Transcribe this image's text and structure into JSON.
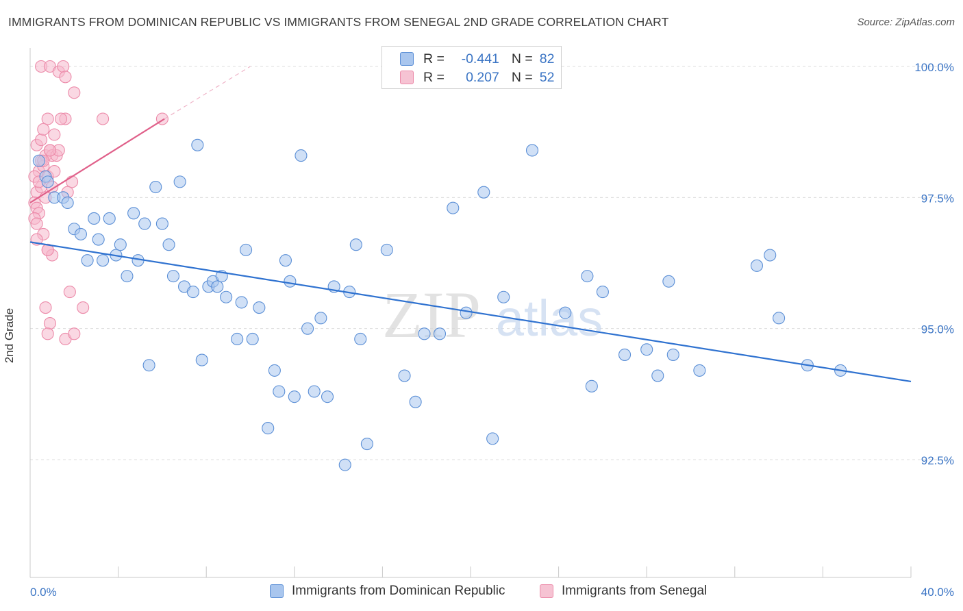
{
  "title": "IMMIGRANTS FROM DOMINICAN REPUBLIC VS IMMIGRANTS FROM SENEGAL 2ND GRADE CORRELATION CHART",
  "source": "Source: ZipAtlas.com",
  "watermark": {
    "zip": "ZIP",
    "atlas": "atlas"
  },
  "colors": {
    "blue_fill": "#a9c6ee",
    "blue_stroke": "#5b8fd6",
    "blue_line": "#2f72d0",
    "pink_fill": "#f6b8cc",
    "pink_stroke": "#ec8aa9",
    "pink_line": "#e0608a",
    "tick_text": "#3a74c4",
    "grid": "#dcdcdc"
  },
  "stats": [
    {
      "r_label": "R =",
      "r_value": "-0.441",
      "n_label": "N =",
      "n_value": "82"
    },
    {
      "r_label": "R =",
      "r_value": "0.207",
      "n_label": "N =",
      "n_value": "52"
    }
  ],
  "chart_data": {
    "type": "scatter",
    "title": "IMMIGRANTS FROM DOMINICAN REPUBLIC VS IMMIGRANTS FROM SENEGAL 2ND GRADE CORRELATION CHART",
    "xlabel": "",
    "ylabel": "2nd Grade",
    "xlim": [
      0,
      40
    ],
    "ylim": [
      90.0,
      100.25
    ],
    "x_tick_labels": [
      "0.0%",
      "40.0%"
    ],
    "y_ticks": [
      {
        "value": 100.0,
        "label": "100.0%"
      },
      {
        "value": 97.5,
        "label": "97.5%"
      },
      {
        "value": 95.0,
        "label": "95.0%"
      },
      {
        "value": 92.5,
        "label": "92.5%"
      }
    ],
    "grid": true,
    "legend_position": "bottom",
    "series": [
      {
        "name": "Immigrants from Dominican Republic",
        "color": "#a9c6ee",
        "trend": {
          "x": [
            0,
            40
          ],
          "y": [
            96.65,
            93.99
          ]
        },
        "points": [
          [
            0.4,
            98.2
          ],
          [
            0.7,
            97.9
          ],
          [
            0.8,
            97.8
          ],
          [
            1.1,
            97.5
          ],
          [
            1.5,
            97.5
          ],
          [
            1.7,
            97.4
          ],
          [
            2.0,
            96.9
          ],
          [
            2.3,
            96.8
          ],
          [
            2.6,
            96.3
          ],
          [
            2.9,
            97.1
          ],
          [
            3.1,
            96.7
          ],
          [
            3.3,
            96.3
          ],
          [
            3.6,
            97.1
          ],
          [
            3.9,
            96.4
          ],
          [
            4.1,
            96.6
          ],
          [
            4.4,
            96.0
          ],
          [
            4.7,
            97.2
          ],
          [
            4.9,
            96.3
          ],
          [
            5.2,
            97.0
          ],
          [
            5.4,
            94.3
          ],
          [
            5.7,
            97.7
          ],
          [
            6.0,
            97.0
          ],
          [
            6.3,
            96.6
          ],
          [
            6.5,
            96.0
          ],
          [
            6.8,
            97.8
          ],
          [
            7.0,
            95.8
          ],
          [
            7.4,
            95.7
          ],
          [
            7.6,
            98.5
          ],
          [
            7.8,
            94.4
          ],
          [
            8.1,
            95.8
          ],
          [
            8.3,
            95.9
          ],
          [
            8.5,
            95.8
          ],
          [
            8.7,
            96.0
          ],
          [
            8.9,
            95.6
          ],
          [
            9.4,
            94.8
          ],
          [
            9.6,
            95.5
          ],
          [
            9.8,
            96.5
          ],
          [
            10.1,
            94.8
          ],
          [
            10.4,
            95.4
          ],
          [
            10.8,
            93.1
          ],
          [
            11.1,
            94.2
          ],
          [
            11.3,
            93.8
          ],
          [
            11.6,
            96.3
          ],
          [
            11.8,
            95.9
          ],
          [
            12.0,
            93.7
          ],
          [
            12.3,
            98.3
          ],
          [
            12.6,
            95.0
          ],
          [
            12.9,
            93.8
          ],
          [
            13.2,
            95.2
          ],
          [
            13.5,
            93.7
          ],
          [
            13.8,
            95.8
          ],
          [
            14.3,
            92.4
          ],
          [
            14.5,
            95.7
          ],
          [
            14.8,
            96.6
          ],
          [
            15.0,
            94.8
          ],
          [
            15.3,
            92.8
          ],
          [
            16.2,
            96.5
          ],
          [
            17.0,
            94.1
          ],
          [
            17.5,
            93.6
          ],
          [
            17.9,
            94.9
          ],
          [
            18.6,
            94.9
          ],
          [
            19.2,
            97.3
          ],
          [
            19.8,
            95.3
          ],
          [
            20.6,
            97.6
          ],
          [
            21.0,
            92.9
          ],
          [
            21.5,
            95.6
          ],
          [
            22.8,
            98.4
          ],
          [
            24.3,
            95.3
          ],
          [
            25.3,
            96.0
          ],
          [
            25.5,
            93.9
          ],
          [
            26.0,
            95.7
          ],
          [
            27.0,
            94.5
          ],
          [
            28.0,
            94.6
          ],
          [
            28.5,
            94.1
          ],
          [
            29.0,
            95.9
          ],
          [
            29.2,
            94.5
          ],
          [
            30.4,
            94.2
          ],
          [
            33.0,
            96.2
          ],
          [
            33.6,
            96.4
          ],
          [
            34.0,
            95.2
          ],
          [
            35.3,
            94.3
          ],
          [
            36.8,
            94.2
          ]
        ]
      },
      {
        "name": "Immigrants from Senegal",
        "color": "#f6b8cc",
        "trend": {
          "x": [
            0,
            6.1
          ],
          "y": [
            97.4,
            99.0
          ]
        },
        "trend_dashed_extension": {
          "x": [
            6.1,
            10.0
          ],
          "y": [
            99.0,
            100.0
          ]
        },
        "points": [
          [
            0.5,
            100.0
          ],
          [
            0.9,
            100.0
          ],
          [
            1.3,
            99.9
          ],
          [
            1.5,
            100.0
          ],
          [
            1.6,
            99.8
          ],
          [
            2.0,
            99.5
          ],
          [
            0.8,
            99.0
          ],
          [
            1.1,
            98.7
          ],
          [
            1.6,
            99.0
          ],
          [
            1.4,
            99.0
          ],
          [
            0.3,
            98.5
          ],
          [
            0.5,
            98.6
          ],
          [
            0.7,
            98.3
          ],
          [
            0.9,
            98.4
          ],
          [
            1.0,
            98.3
          ],
          [
            1.2,
            98.3
          ],
          [
            0.4,
            98.0
          ],
          [
            0.6,
            98.1
          ],
          [
            0.8,
            97.9
          ],
          [
            1.1,
            98.0
          ],
          [
            0.2,
            97.9
          ],
          [
            0.3,
            97.6
          ],
          [
            0.5,
            97.7
          ],
          [
            0.7,
            97.5
          ],
          [
            1.0,
            97.7
          ],
          [
            0.2,
            97.4
          ],
          [
            0.3,
            97.3
          ],
          [
            0.4,
            97.2
          ],
          [
            0.2,
            97.1
          ],
          [
            0.3,
            97.0
          ],
          [
            0.6,
            96.8
          ],
          [
            0.3,
            96.7
          ],
          [
            0.8,
            96.5
          ],
          [
            1.0,
            96.4
          ],
          [
            0.8,
            96.5
          ],
          [
            1.9,
            97.8
          ],
          [
            1.8,
            95.7
          ],
          [
            2.4,
            95.4
          ],
          [
            0.7,
            95.4
          ],
          [
            0.9,
            95.1
          ],
          [
            0.8,
            94.9
          ],
          [
            1.6,
            94.8
          ],
          [
            2.0,
            94.9
          ],
          [
            6.0,
            99.0
          ],
          [
            3.3,
            99.0
          ],
          [
            0.6,
            98.8
          ],
          [
            0.5,
            98.2
          ],
          [
            1.3,
            98.4
          ],
          [
            0.9,
            98.4
          ],
          [
            0.4,
            97.8
          ],
          [
            0.6,
            98.2
          ],
          [
            1.7,
            97.6
          ]
        ]
      }
    ]
  }
}
